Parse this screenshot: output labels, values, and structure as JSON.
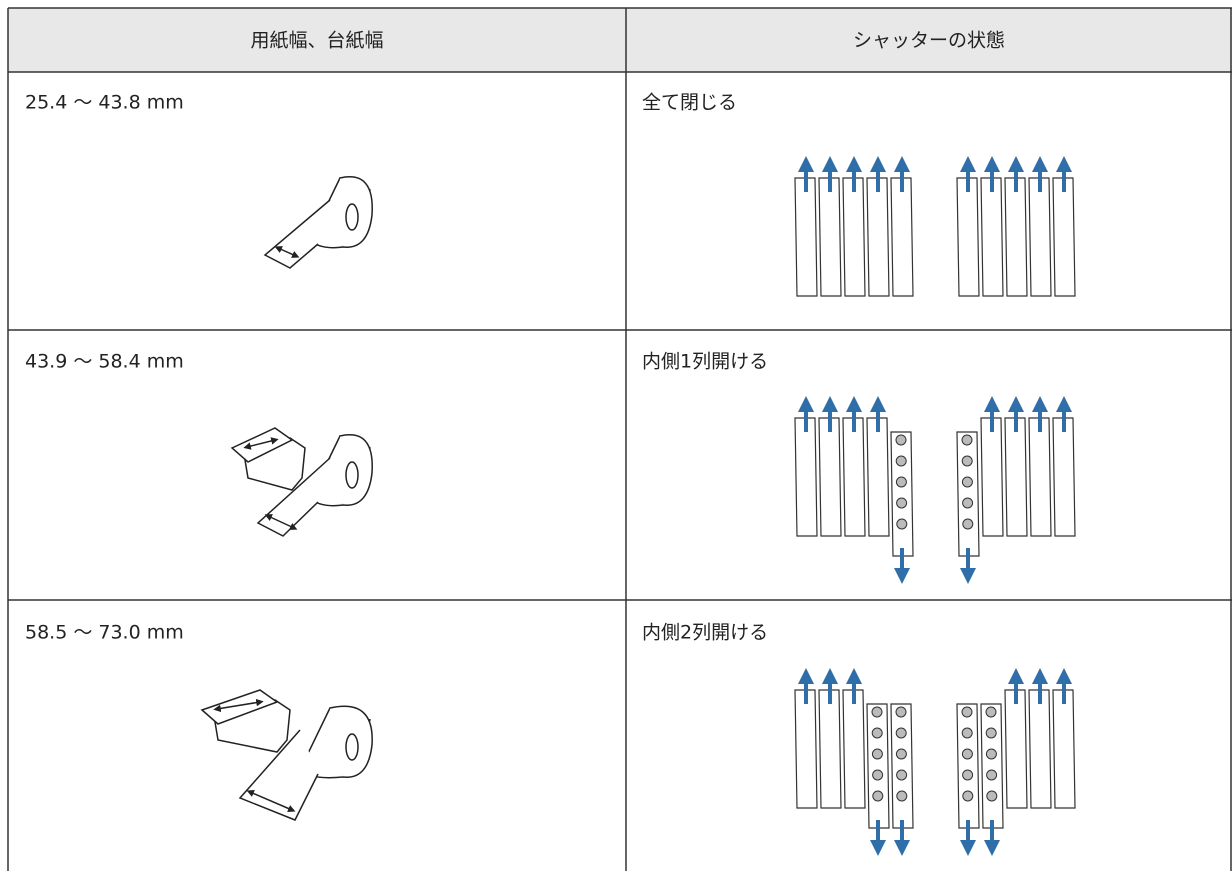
{
  "table": {
    "header": [
      "用紙幅、台紙幅",
      "シャッターの状態"
    ],
    "rows": [
      [
        "25.4 ～ 43.8 mm",
        "全て閉じる"
      ],
      [
        "43.9 ～ 58.4 mm",
        "内側1列開ける"
      ],
      [
        "58.5 ～ 73.0 mm",
        "内側2列開ける"
      ]
    ]
  }
}
